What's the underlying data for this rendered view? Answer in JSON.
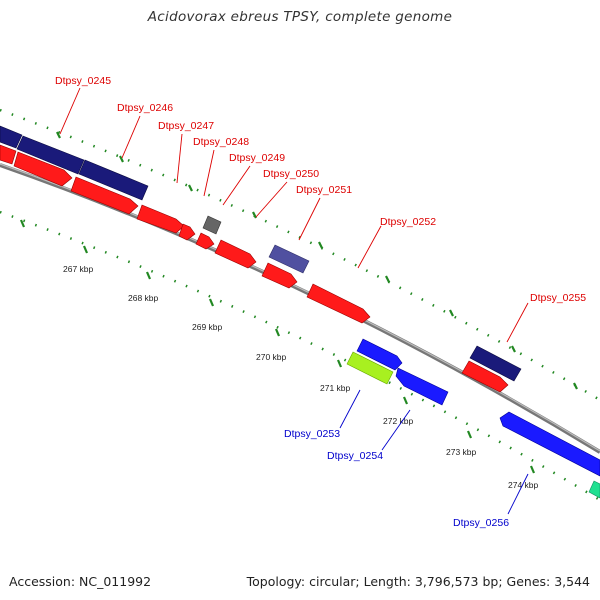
{
  "title": "Acidovorax ebreus TPSY, complete genome",
  "footer": {
    "accession": "Accession: NC_011992",
    "summary": "Topology: circular; Length: 3,796,573 bp; Genes: 3,544"
  },
  "colors": {
    "forward_gene": "#ff1a1a",
    "forward_dark": "#1a1a7a",
    "reverse_gene": "#1a1aff",
    "reverse_light": "#a8f020",
    "teal_gene": "#20e090",
    "pseudo_gene": "#555555",
    "outline_gene": "#5050a0",
    "label_red": "#dd0000",
    "label_blue": "#0000cc",
    "tick_green": "#228822"
  },
  "scale_ticks": [
    "267 kbp",
    "268 kbp",
    "269 kbp",
    "270 kbp",
    "271 kbp",
    "272 kbp",
    "273 kbp",
    "274 kbp"
  ],
  "gene_labels_forward": [
    "Dtpsy_0245",
    "Dtpsy_0246",
    "Dtpsy_0247",
    "Dtpsy_0248",
    "Dtpsy_0249",
    "Dtpsy_0250",
    "Dtpsy_0251",
    "Dtpsy_0252",
    "Dtpsy_0255"
  ],
  "gene_labels_reverse": [
    "Dtpsy_0253",
    "Dtpsy_0254",
    "Dtpsy_0256"
  ]
}
